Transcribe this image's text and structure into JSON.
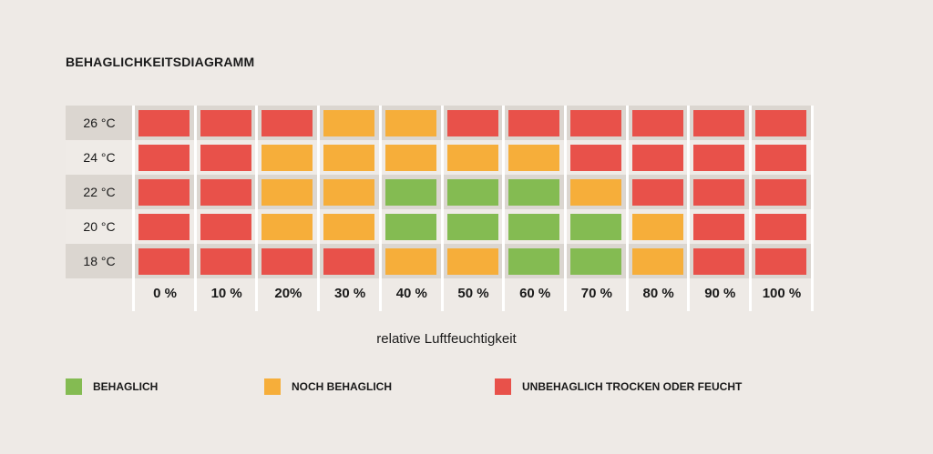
{
  "colors": {
    "behaglich": "#84bb52",
    "noch": "#f6ae3a",
    "unbehaglich": "#e8514a"
  },
  "chart_data": {
    "type": "heatmap",
    "title": "BEHAGLICHKEITSDIAGRAMM",
    "xlabel": "relative Luftfeuchtigkeit",
    "ylabel": "",
    "x_ticks": [
      "0 %",
      "10 %",
      "20%",
      "30 %",
      "40 %",
      "50 %",
      "60 %",
      "70 %",
      "80 %",
      "90 %",
      "100 %"
    ],
    "y_ticks": [
      "26 °C",
      "24 °C",
      "22 °C",
      "20 °C",
      "18 °C"
    ],
    "values": [
      [
        "U",
        "U",
        "U",
        "N",
        "N",
        "U",
        "U",
        "U",
        "U",
        "U",
        "U"
      ],
      [
        "U",
        "U",
        "N",
        "N",
        "N",
        "N",
        "N",
        "U",
        "U",
        "U",
        "U"
      ],
      [
        "U",
        "U",
        "N",
        "N",
        "B",
        "B",
        "B",
        "N",
        "U",
        "U",
        "U"
      ],
      [
        "U",
        "U",
        "N",
        "N",
        "B",
        "B",
        "B",
        "B",
        "N",
        "U",
        "U"
      ],
      [
        "U",
        "U",
        "U",
        "U",
        "N",
        "N",
        "B",
        "B",
        "N",
        "U",
        "U"
      ]
    ],
    "legend": [
      {
        "key": "B",
        "label": "BEHAGLICH",
        "color": "#84bb52"
      },
      {
        "key": "N",
        "label": "NOCH BEHAGLICH",
        "color": "#f6ae3a"
      },
      {
        "key": "U",
        "label": "UNBEHAGLICH TROCKEN ODER FEUCHT",
        "color": "#e8514a"
      }
    ]
  }
}
